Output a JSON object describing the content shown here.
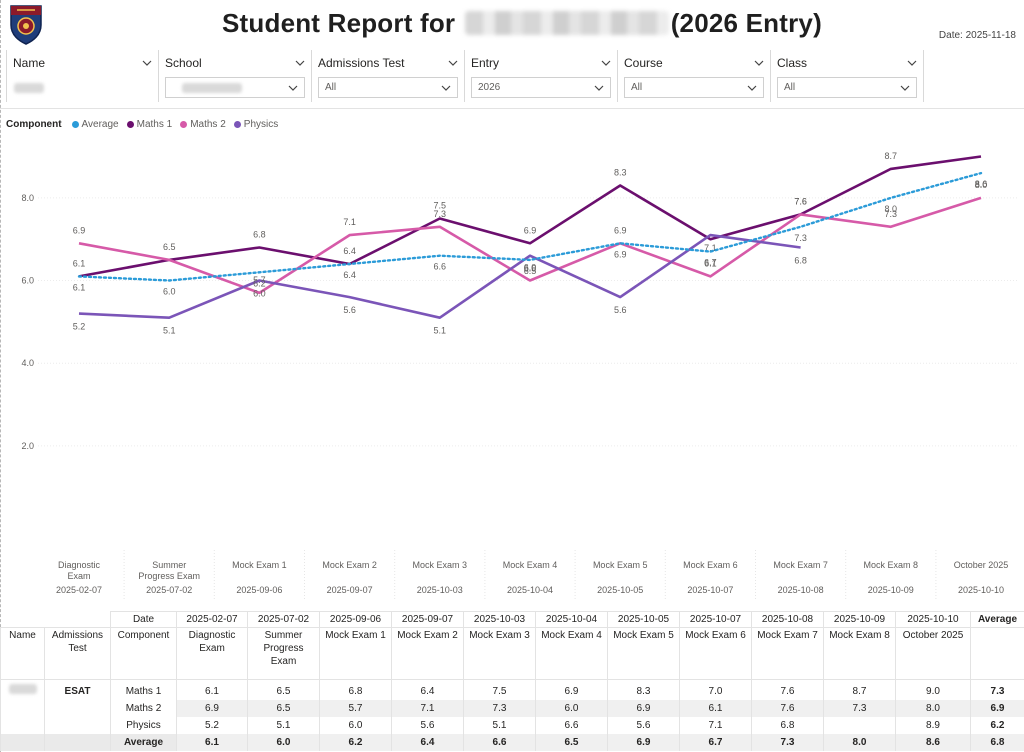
{
  "header": {
    "title_prefix": "Student Report for",
    "title_suffix": "(2026 Entry)",
    "date_label": "Date: 2025-11-18"
  },
  "logo": {
    "icon": "school-crest-icon",
    "colors": [
      "#8b1a2b",
      "#1f3d7a",
      "#f2c14e"
    ]
  },
  "slicers": [
    {
      "label": "Name",
      "value": ""
    },
    {
      "label": "School",
      "value": ""
    },
    {
      "label": "Admissions Test",
      "value": "All"
    },
    {
      "label": "Entry",
      "value": "2026"
    },
    {
      "label": "Course",
      "value": "All"
    },
    {
      "label": "Class",
      "value": "All"
    }
  ],
  "legend": {
    "title": "Component",
    "items": [
      {
        "label": "Average",
        "color": "#2b9bd8"
      },
      {
        "label": "Maths 1",
        "color": "#6b0f6e"
      },
      {
        "label": "Maths 2",
        "color": "#d65aa8"
      },
      {
        "label": "Physics",
        "color": "#7b55b8"
      }
    ]
  },
  "chart_data": {
    "type": "line",
    "categories": [
      "Diagnostic Exam",
      "Summer Progress Exam",
      "Mock Exam 1",
      "Mock Exam 2",
      "Mock Exam 3",
      "Mock Exam 4",
      "Mock Exam 5",
      "Mock Exam 6",
      "Mock Exam 7",
      "Mock Exam 8",
      "October 2025"
    ],
    "dates": [
      "2025-02-07",
      "2025-07-02",
      "2025-09-06",
      "2025-09-07",
      "2025-10-03",
      "2025-10-04",
      "2025-10-05",
      "2025-10-07",
      "2025-10-08",
      "2025-10-09",
      "2025-10-10"
    ],
    "yticks": [
      "8.0",
      "6.0",
      "4.0",
      "2.0"
    ],
    "ylim": [
      0.4,
      9.4
    ],
    "grid": true,
    "series": [
      {
        "name": "Maths 1",
        "color": "#6b0f6e",
        "style": "solid",
        "values": [
          6.1,
          6.5,
          6.8,
          6.4,
          7.5,
          6.9,
          8.3,
          7.0,
          7.6,
          8.7,
          9.0
        ],
        "labels": [
          "6.1",
          "6.5",
          "6.8",
          "6.4",
          "7.5",
          "6.9",
          "8.3",
          "",
          "7.6",
          "8.7",
          ""
        ]
      },
      {
        "name": "Maths 2",
        "color": "#d65aa8",
        "style": "solid",
        "values": [
          6.9,
          6.5,
          5.7,
          7.1,
          7.3,
          6.0,
          6.9,
          6.1,
          7.6,
          7.3,
          8.0
        ],
        "labels": [
          "6.9",
          "",
          "5.7",
          "7.1",
          "7.3",
          "6.0",
          "6.9",
          "6.1",
          "7.6",
          "7.3",
          "8.0"
        ]
      },
      {
        "name": "Physics",
        "color": "#7b55b8",
        "style": "solid",
        "values": [
          5.2,
          5.1,
          6.0,
          5.6,
          5.1,
          6.6,
          5.6,
          7.1,
          6.8,
          null,
          null
        ],
        "labels": [
          "5.2",
          "5.1",
          "6.0",
          "5.6",
          "5.1",
          "6.6",
          "5.6",
          "7.1",
          "6.8",
          "",
          ""
        ]
      },
      {
        "name": "Average",
        "color": "#2b9bd8",
        "style": "dotted",
        "values": [
          6.1,
          6.0,
          6.2,
          6.4,
          6.6,
          6.5,
          6.9,
          6.7,
          7.3,
          8.0,
          8.6
        ],
        "labels": [
          "6.1",
          "6.0",
          "6.2",
          "6.4",
          "6.6",
          "6.5",
          "6.9",
          "6.7",
          "7.3",
          "8.0",
          "8.6"
        ]
      }
    ]
  },
  "table": {
    "headers": {
      "date": "Date",
      "name": "Name",
      "admissions_test": "Admissions Test",
      "component": "Component",
      "average": "Average"
    },
    "dates": [
      "2025-02-07",
      "2025-07-02",
      "2025-09-06",
      "2025-09-07",
      "2025-10-03",
      "2025-10-04",
      "2025-10-05",
      "2025-10-07",
      "2025-10-08",
      "2025-10-09",
      "2025-10-10"
    ],
    "exams": [
      "Diagnostic Exam",
      "Summer Progress Exam",
      "Mock Exam 1",
      "Mock Exam 2",
      "Mock Exam 3",
      "Mock Exam 4",
      "Mock Exam 5",
      "Mock Exam 6",
      "Mock Exam 7",
      "Mock Exam 8",
      "October 2025"
    ],
    "test": "ESAT",
    "rows": [
      {
        "component": "Maths 1",
        "values": [
          "6.1",
          "6.5",
          "6.8",
          "6.4",
          "7.5",
          "6.9",
          "8.3",
          "7.0",
          "7.6",
          "8.7",
          "9.0"
        ],
        "average": "7.3"
      },
      {
        "component": "Maths 2",
        "values": [
          "6.9",
          "6.5",
          "5.7",
          "7.1",
          "7.3",
          "6.0",
          "6.9",
          "6.1",
          "7.6",
          "7.3",
          "8.0"
        ],
        "average": "6.9"
      },
      {
        "component": "Physics",
        "values": [
          "5.2",
          "5.1",
          "6.0",
          "5.6",
          "5.1",
          "6.6",
          "5.6",
          "7.1",
          "6.8",
          "",
          "8.9"
        ],
        "average": "6.2"
      },
      {
        "component": "Average",
        "values": [
          "6.1",
          "6.0",
          "6.2",
          "6.4",
          "6.6",
          "6.5",
          "6.9",
          "6.7",
          "7.3",
          "8.0",
          "8.6"
        ],
        "average": "6.8"
      }
    ]
  }
}
